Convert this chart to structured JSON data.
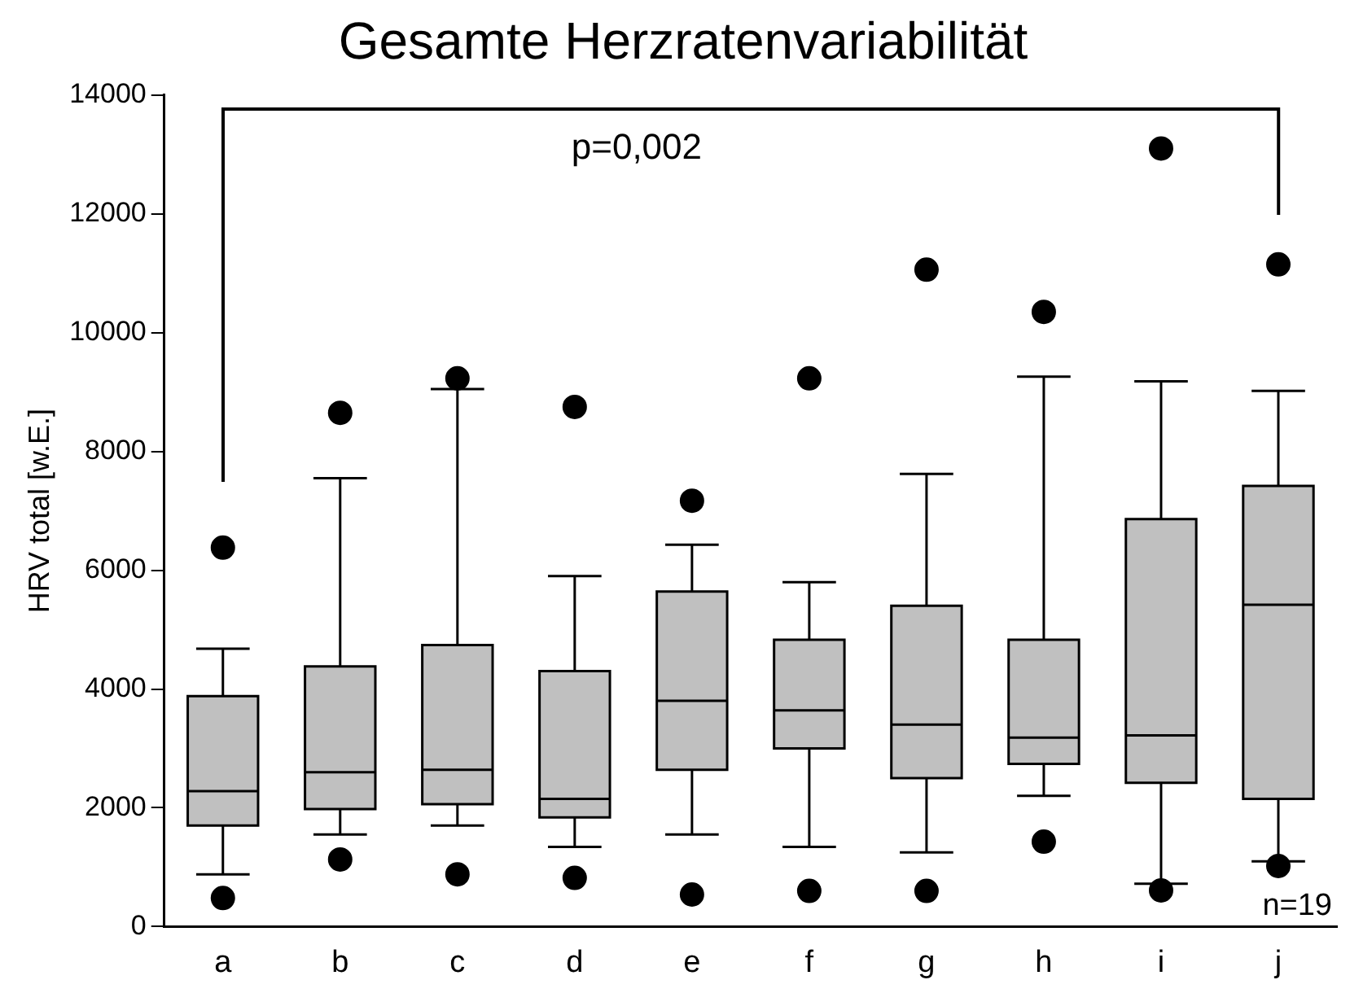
{
  "chart_data": {
    "type": "box",
    "title": "Gesamte Herzratenvariabilität",
    "ylabel": "HRV total [w.E.]",
    "categories": [
      "a",
      "b",
      "c",
      "d",
      "e",
      "f",
      "g",
      "h",
      "i",
      "j"
    ],
    "color": "#c0c0c0",
    "boxes": [
      {
        "low": 880,
        "q1": 1700,
        "median": 2280,
        "q3": 3880,
        "high": 4680,
        "outliers": [
          480,
          6380
        ]
      },
      {
        "low": 1550,
        "q1": 1980,
        "median": 2600,
        "q3": 4380,
        "high": 7550,
        "outliers": [
          1130,
          8650
        ]
      },
      {
        "low": 1700,
        "q1": 2060,
        "median": 2640,
        "q3": 4740,
        "high": 9050,
        "outliers": [
          880,
          9230
        ]
      },
      {
        "low": 1340,
        "q1": 1840,
        "median": 2150,
        "q3": 4300,
        "high": 5900,
        "outliers": [
          820,
          8750
        ]
      },
      {
        "low": 1550,
        "q1": 2640,
        "median": 3800,
        "q3": 5640,
        "high": 6430,
        "outliers": [
          540,
          7170
        ]
      },
      {
        "low": 1340,
        "q1": 3000,
        "median": 3640,
        "q3": 4830,
        "high": 5800,
        "outliers": [
          600,
          9230
        ]
      },
      {
        "low": 1250,
        "q1": 2500,
        "median": 3400,
        "q3": 5400,
        "high": 7620,
        "outliers": [
          600,
          11060
        ]
      },
      {
        "low": 2200,
        "q1": 2740,
        "median": 3180,
        "q3": 4830,
        "high": 9260,
        "outliers": [
          1430,
          10350
        ]
      },
      {
        "low": 720,
        "q1": 2420,
        "median": 3220,
        "q3": 6860,
        "high": 9180,
        "outliers": [
          610,
          13100
        ]
      },
      {
        "low": 1100,
        "q1": 2150,
        "median": 5420,
        "q3": 7420,
        "high": 9020,
        "outliers": [
          1020,
          11150
        ]
      }
    ],
    "ylim": [
      0,
      14000
    ],
    "yticks": [
      0,
      2000,
      4000,
      6000,
      8000,
      10000,
      12000,
      14000
    ],
    "annotations": [
      "p=0,002",
      "n=19"
    ],
    "grid": false,
    "legend": false
  }
}
